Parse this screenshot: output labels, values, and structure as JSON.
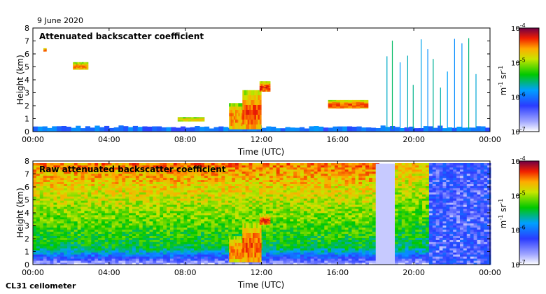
{
  "figure": {
    "date": "9 June 2020",
    "instrument": "CL31 ceilometer"
  },
  "chart_data": [
    {
      "type": "heatmap",
      "title": "Attenuated backscatter coefficient",
      "xlabel": "Time (UTC)",
      "ylabel": "Height (km)",
      "x_ticks": [
        "00:00",
        "04:00",
        "08:00",
        "12:00",
        "16:00",
        "20:00",
        "00:00"
      ],
      "x_hours": [
        0,
        4,
        8,
        12,
        16,
        20,
        24
      ],
      "xlim": [
        0,
        24
      ],
      "y_ticks": [
        "0",
        "1",
        "2",
        "3",
        "4",
        "5",
        "6",
        "7",
        "8"
      ],
      "ylim": [
        0,
        8
      ],
      "colorbar": {
        "label": "m-1 sr-1",
        "label_base": "m",
        "label_exp1": "-1",
        "label_mid": " sr",
        "label_exp2": "-1",
        "scale": "log",
        "range": [
          1e-07,
          0.0001
        ],
        "ticks": [
          {
            "value": 0.0001,
            "base": "10",
            "exp": "-4"
          },
          {
            "value": 1e-05,
            "base": "10",
            "exp": "-5"
          },
          {
            "value": 1e-06,
            "base": "10",
            "exp": "-6"
          },
          {
            "value": 1e-07,
            "base": "10",
            "exp": "-7"
          }
        ]
      },
      "features": [
        {
          "kind": "surface_layer",
          "t_start": 0,
          "t_end": 24,
          "top_km": 0.4,
          "level": 1e-06
        },
        {
          "kind": "cloud",
          "t_start": 0.55,
          "t_end": 0.7,
          "h_bottom": 6.2,
          "h_top": 6.4,
          "level": 5e-05
        },
        {
          "kind": "cloud",
          "t_start": 2.1,
          "t_end": 2.9,
          "h_bottom": 4.8,
          "h_top": 5.3,
          "level": 3e-05
        },
        {
          "kind": "cloud",
          "t_start": 7.6,
          "t_end": 9.0,
          "h_bottom": 0.8,
          "h_top": 1.1,
          "level": 2e-05
        },
        {
          "kind": "cloud",
          "t_start": 10.3,
          "t_end": 11.0,
          "h_bottom": 0.2,
          "h_top": 2.2,
          "level": 3e-05
        },
        {
          "kind": "cloud",
          "t_start": 11.0,
          "t_end": 11.9,
          "h_bottom": 0.2,
          "h_top": 3.2,
          "level": 4e-05
        },
        {
          "kind": "cloud",
          "t_start": 11.9,
          "t_end": 12.4,
          "h_bottom": 3.1,
          "h_top": 3.8,
          "level": 5e-05
        },
        {
          "kind": "cloud",
          "t_start": 15.5,
          "t_end": 17.6,
          "h_bottom": 1.8,
          "h_top": 2.4,
          "level": 4e-05
        },
        {
          "kind": "rain_streaks",
          "t_start": 18.5,
          "t_end": 23.2,
          "h_top": 7.5,
          "level": 2e-06
        }
      ]
    },
    {
      "type": "heatmap",
      "title": "Raw attenuated backscatter coefficient",
      "xlabel": "Time (UTC)",
      "ylabel": "Height (km)",
      "x_ticks": [
        "00:00",
        "04:00",
        "08:00",
        "12:00",
        "16:00",
        "20:00",
        "00:00"
      ],
      "x_hours": [
        0,
        4,
        8,
        12,
        16,
        20,
        24
      ],
      "xlim": [
        0,
        24
      ],
      "y_ticks": [
        "0",
        "1",
        "2",
        "3",
        "4",
        "5",
        "6",
        "7",
        "8"
      ],
      "ylim": [
        0,
        8
      ],
      "colorbar": {
        "label": "m-1 sr-1",
        "label_base": "m",
        "label_exp1": "-1",
        "label_mid": " sr",
        "label_exp2": "-1",
        "scale": "log",
        "range": [
          1e-07,
          0.0001
        ],
        "ticks": [
          {
            "value": 0.0001,
            "base": "10",
            "exp": "-4"
          },
          {
            "value": 1e-05,
            "base": "10",
            "exp": "-5"
          },
          {
            "value": 1e-06,
            "base": "10",
            "exp": "-6"
          },
          {
            "value": 1e-07,
            "base": "10",
            "exp": "-7"
          }
        ]
      },
      "features": [
        {
          "kind": "noise_background",
          "t_start": 0,
          "t_end": 18.0,
          "level_low": 1e-06,
          "level_high": 3e-05
        },
        {
          "kind": "clear_gap",
          "t_start": 18.0,
          "t_end": 19.0,
          "level": 1e-07
        },
        {
          "kind": "noise_background",
          "t_start": 19.0,
          "t_end": 20.8,
          "level_low": 1e-06,
          "level_high": 2e-05
        },
        {
          "kind": "low_noise",
          "t_start": 20.8,
          "t_end": 24,
          "level": 3e-07
        },
        {
          "kind": "cloud",
          "t_start": 10.3,
          "t_end": 11.0,
          "h_bottom": 0.2,
          "h_top": 2.2,
          "level": 3e-05
        },
        {
          "kind": "cloud",
          "t_start": 11.0,
          "t_end": 11.9,
          "h_bottom": 0.2,
          "h_top": 3.2,
          "level": 4e-05
        },
        {
          "kind": "cloud",
          "t_start": 11.9,
          "t_end": 12.4,
          "h_bottom": 3.1,
          "h_top": 3.8,
          "level": 5e-05
        }
      ]
    }
  ]
}
